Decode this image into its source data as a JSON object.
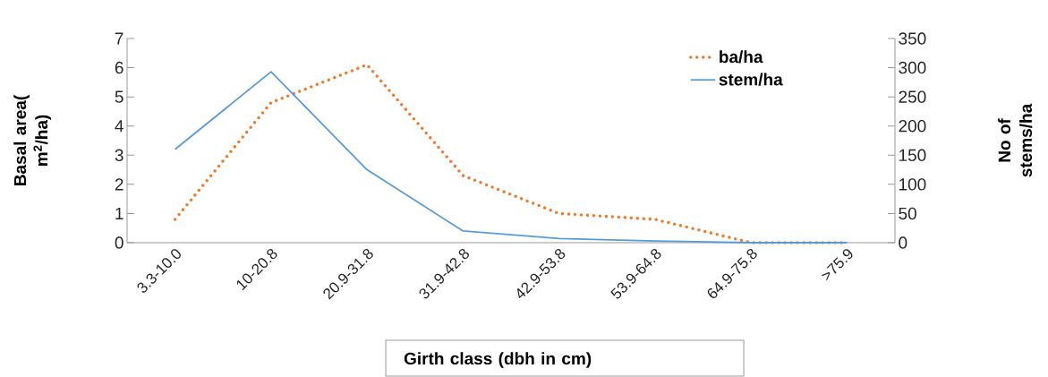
{
  "chart_data": {
    "type": "line",
    "categories": [
      "3.3-10.0",
      "10-20.8",
      "20.9-31.8",
      "31.9-42.8",
      "42.9-53.8",
      "53.9-64.8",
      "64.9-75.8",
      ">75.9"
    ],
    "series": [
      {
        "name": "ba/ha",
        "color": "#ed7d31",
        "line_style": "dotted",
        "values": [
          0.8,
          4.8,
          6.1,
          2.3,
          1.0,
          0.8,
          0,
          0
        ]
      },
      {
        "name": "stem/ha",
        "color": "#5b9bd5",
        "line_style": "solid",
        "axis": "y2",
        "values": [
          160,
          293,
          125,
          20,
          7,
          3,
          0,
          0
        ]
      }
    ],
    "xlabel": "Girth class (dbh in cm)",
    "ylabel": "Basal area( m$^{2}$/ha)",
    "y2label": "No of stems/ha",
    "ylim": [
      0,
      7
    ],
    "yticks": [
      0,
      1,
      2,
      3,
      4,
      5,
      6,
      7
    ],
    "y2lim": [
      0,
      350
    ],
    "y2ticks": [
      0,
      50,
      100,
      150,
      200,
      250,
      300,
      350
    ],
    "legend": "top right",
    "marker": "none"
  }
}
